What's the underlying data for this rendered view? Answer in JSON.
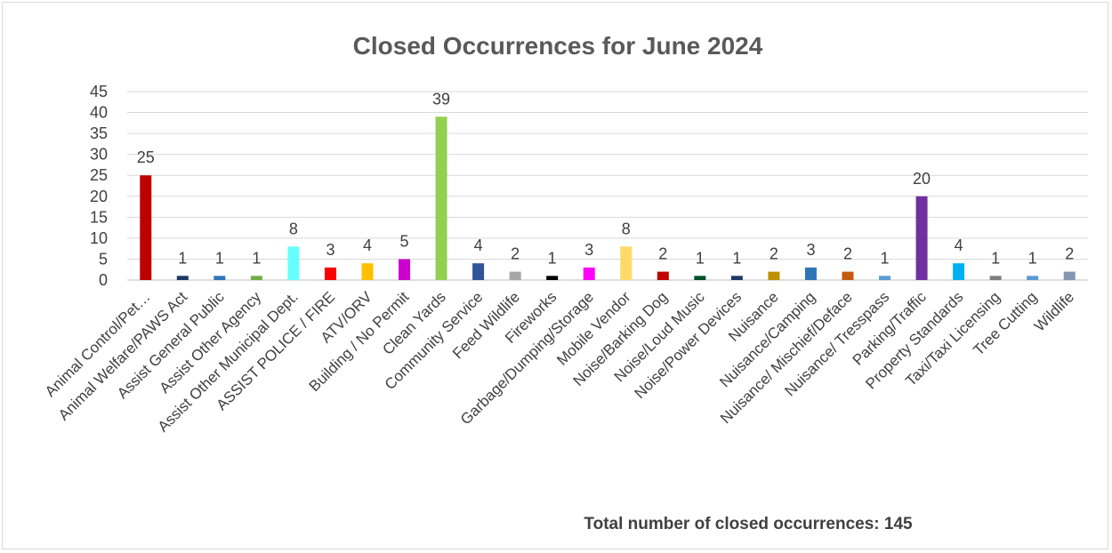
{
  "chart_data": {
    "type": "bar",
    "title": "Closed Occurrences for June 2024",
    "xlabel": "",
    "ylabel": "",
    "ylim": [
      0,
      45
    ],
    "ytick_step": 5,
    "grid": true,
    "legend": "none",
    "categories": [
      "Animal Control/Pet…",
      "Animal Welfare/PAWS Act",
      "Assist General Public",
      "Assist Other Agency",
      "Assist Other Municipal Dept.",
      "ASSIST POLICE / FIRE",
      "ATV/ORV",
      "Building / No Permit",
      "Clean Yards",
      "Community Service",
      "Feed Wildlife",
      "Fireworks",
      "Garbage/Dumping/Storage",
      "Mobile Vendor",
      "Noise/Barking Dog",
      "Noise/Loud Music",
      "Noise/Power Devices",
      "Nuisance",
      "Nuisance/Camping",
      "Nuisance/ Mischief/Deface",
      "Nuisance/ Tresspass",
      "Parking/Traffic",
      "Property Standards",
      "Taxi/Taxi Licensing",
      "Tree Cutting",
      "Wildlife"
    ],
    "values": [
      25,
      1,
      1,
      1,
      8,
      3,
      4,
      5,
      39,
      4,
      2,
      1,
      3,
      8,
      2,
      1,
      1,
      2,
      3,
      2,
      1,
      20,
      4,
      1,
      1,
      2
    ],
    "colors": [
      "#c00000",
      "#1f3864",
      "#2e75b6",
      "#70ad47",
      "#66ffff",
      "#ff0000",
      "#ffc000",
      "#cc00cc",
      "#92d050",
      "#2f5597",
      "#a6a6a6",
      "#000000",
      "#ff00ff",
      "#ffd966",
      "#c00000",
      "#00502a",
      "#1f3864",
      "#bf9000",
      "#2e75b6",
      "#c55a11",
      "#5b9bd5",
      "#7030a0",
      "#00b0f0",
      "#7f7f7f",
      "#5b9bd5",
      "#8497b0"
    ]
  },
  "footer": {
    "total_label": "Total number of closed occurrences: 145"
  }
}
